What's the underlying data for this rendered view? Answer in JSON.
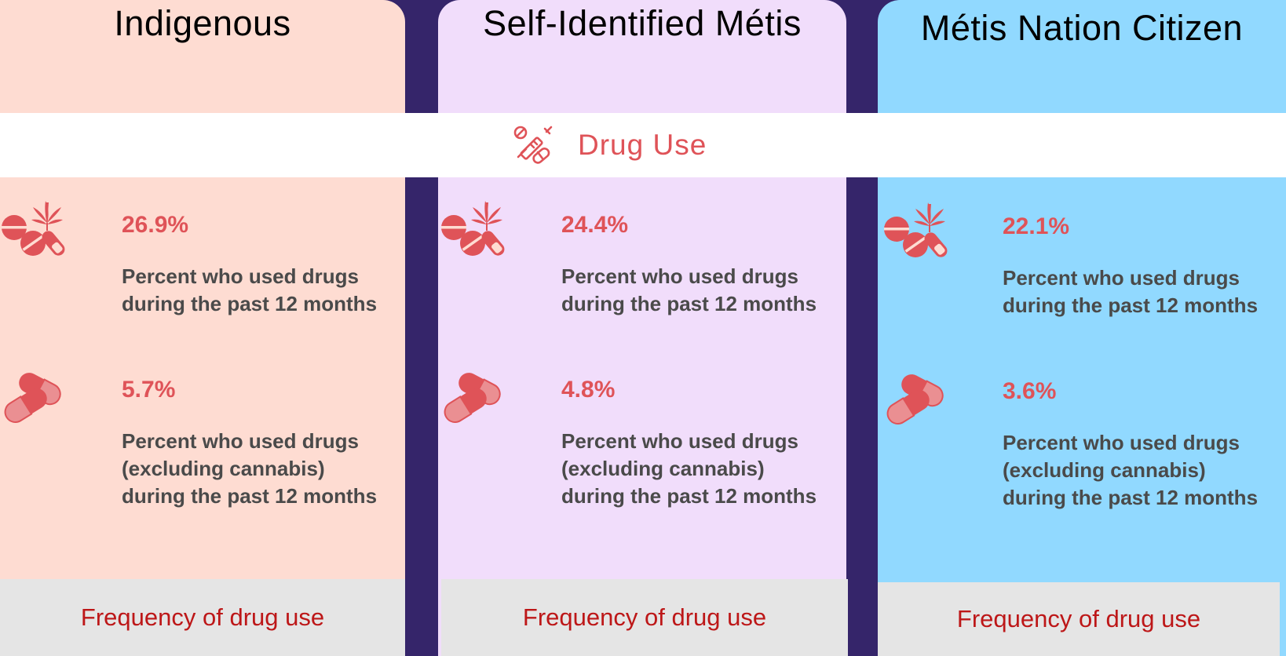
{
  "section": {
    "title": "Drug Use",
    "icon": "syringe-pill-icon"
  },
  "accent_color": "#df5358",
  "columns": [
    {
      "title": "Indigenous",
      "background": "#fedcd2",
      "stats": [
        {
          "value": "26.9%",
          "line1": "Percent who used drugs",
          "line2": "during the past 12 months",
          "line3": "",
          "icon": "drugs-cannabis-pills-icon"
        },
        {
          "value": "5.7%",
          "line1": "Percent who used drugs",
          "line2": "(excluding cannabis)",
          "line3": "during the past 12 months",
          "icon": "capsules-icon"
        }
      ],
      "footer": "Frequency of drug use"
    },
    {
      "title": "Self-Identified Métis",
      "background": "#f1ddfb",
      "stats": [
        {
          "value": "24.4%",
          "line1": "Percent who used drugs",
          "line2": "during the past 12 months",
          "line3": "",
          "icon": "drugs-cannabis-pills-icon"
        },
        {
          "value": "4.8%",
          "line1": "Percent who used drugs",
          "line2": "(excluding cannabis)",
          "line3": "during the past 12 months",
          "icon": "capsules-icon"
        }
      ],
      "footer": "Frequency of drug use"
    },
    {
      "title": "Métis Nation Citizen",
      "background": "#91d9ff",
      "stats": [
        {
          "value": "22.1%",
          "line1": "Percent who used drugs",
          "line2": "during the past 12 months",
          "line3": "",
          "icon": "drugs-cannabis-pills-icon"
        },
        {
          "value": "3.6%",
          "line1": "Percent who used drugs",
          "line2": "(excluding cannabis)",
          "line3": "during the past 12 months",
          "icon": "capsules-icon"
        }
      ],
      "footer": "Frequency of drug use"
    }
  ]
}
